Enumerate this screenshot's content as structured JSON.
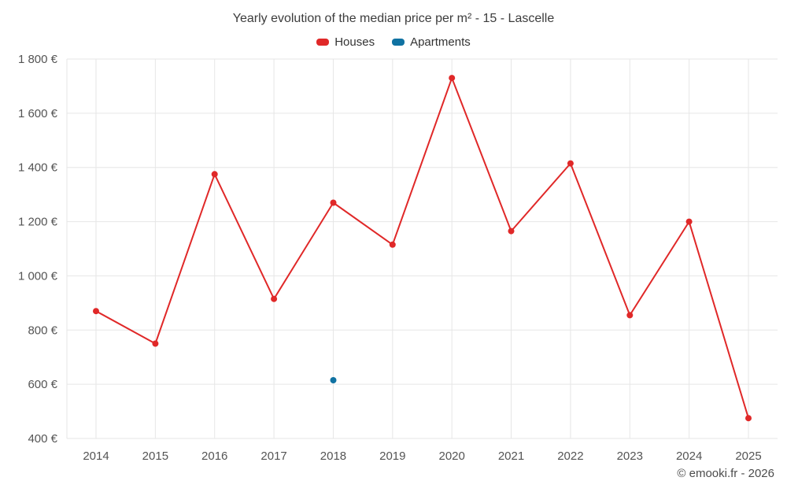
{
  "footer": {
    "copyright": "© emooki.fr - 2026"
  },
  "chart_data": {
    "type": "line",
    "title": "Yearly evolution of the median price per m² - 15 - Lascelle",
    "categories": [
      "2014",
      "2015",
      "2016",
      "2017",
      "2018",
      "2019",
      "2020",
      "2021",
      "2022",
      "2023",
      "2024",
      "2025"
    ],
    "series": [
      {
        "name": "Houses",
        "color": "#e02828",
        "values": [
          870,
          750,
          1375,
          915,
          1270,
          1115,
          1730,
          1165,
          1415,
          855,
          1200,
          475
        ]
      },
      {
        "name": "Apartments",
        "color": "#1072a2",
        "values": [
          null,
          null,
          null,
          null,
          615,
          null,
          null,
          null,
          null,
          null,
          null,
          null
        ]
      }
    ],
    "xlabel": "",
    "ylabel": "",
    "ylim": [
      400,
      1800
    ],
    "y_tick_values": [
      400,
      600,
      800,
      1000,
      1200,
      1400,
      1600,
      1800
    ],
    "y_tick_labels": [
      "400 €",
      "600 €",
      "800 €",
      "1 000 €",
      "1 200 €",
      "1 400 €",
      "1 600 €",
      "1 800 €"
    ],
    "y_tick_suffix": " €",
    "grid": true,
    "legend_position": "top",
    "grid_color": "#e6e6e6"
  }
}
